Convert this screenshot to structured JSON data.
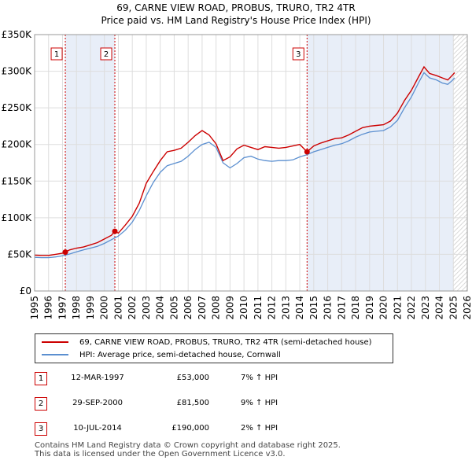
{
  "chart_data": {
    "type": "line",
    "title": "69, CARNE VIEW ROAD, PROBUS, TRURO, TR2 4TR",
    "subtitle": "Price paid vs. HM Land Registry's House Price Index (HPI)",
    "xlabel": "",
    "ylabel": "",
    "xlim": [
      1995,
      2026
    ],
    "ylim": [
      0,
      350000
    ],
    "x_ticks": [
      "1995",
      "1996",
      "1997",
      "1998",
      "1999",
      "2000",
      "2001",
      "2002",
      "2003",
      "2004",
      "2005",
      "2006",
      "2007",
      "2008",
      "2009",
      "2010",
      "2011",
      "2012",
      "2013",
      "2014",
      "2015",
      "2016",
      "2017",
      "2018",
      "2019",
      "2020",
      "2021",
      "2022",
      "2023",
      "2024",
      "2025",
      "2026"
    ],
    "y_ticks": [
      {
        "value": 0,
        "label": "£0"
      },
      {
        "value": 50000,
        "label": "£50K"
      },
      {
        "value": 100000,
        "label": "£100K"
      },
      {
        "value": 150000,
        "label": "£150K"
      },
      {
        "value": 200000,
        "label": "£200K"
      },
      {
        "value": 250000,
        "label": "£250K"
      },
      {
        "value": 300000,
        "label": "£300K"
      },
      {
        "value": 350000,
        "label": "£350K"
      }
    ],
    "grid": true,
    "series": [
      {
        "name": "69, CARNE VIEW ROAD, PROBUS, TRURO, TR2 4TR (semi-detached house)",
        "color": "#cc0000",
        "x": [
          1995.0,
          1995.5,
          1996.0,
          1996.5,
          1997.0,
          1997.2,
          1997.5,
          1998.0,
          1998.5,
          1999.0,
          1999.5,
          2000.0,
          2000.5,
          2000.75,
          2001.0,
          2001.5,
          2002.0,
          2002.5,
          2003.0,
          2003.5,
          2004.0,
          2004.5,
          2005.0,
          2005.5,
          2006.0,
          2006.5,
          2007.0,
          2007.5,
          2008.0,
          2008.5,
          2009.0,
          2009.5,
          2010.0,
          2010.5,
          2011.0,
          2011.5,
          2012.0,
          2012.5,
          2013.0,
          2013.5,
          2014.0,
          2014.52,
          2015.0,
          2015.5,
          2016.0,
          2016.5,
          2017.0,
          2017.5,
          2018.0,
          2018.5,
          2019.0,
          2019.5,
          2020.0,
          2020.5,
          2021.0,
          2021.5,
          2022.0,
          2022.5,
          2022.9,
          2023.3,
          2023.8,
          2024.2,
          2024.6,
          2024.9,
          2025.1
        ],
        "y": [
          49000,
          48500,
          48500,
          50000,
          51500,
          53000,
          56000,
          58500,
          60000,
          63000,
          66000,
          71000,
          76000,
          81500,
          79000,
          90000,
          102000,
          120000,
          147000,
          163000,
          178000,
          190000,
          192000,
          195000,
          203000,
          212000,
          219000,
          213000,
          201000,
          178000,
          183000,
          194000,
          199000,
          196000,
          193000,
          197000,
          196000,
          195000,
          196000,
          198000,
          200000,
          190000,
          198000,
          202000,
          205000,
          208000,
          209000,
          213000,
          218000,
          223000,
          225000,
          226000,
          227000,
          232000,
          243000,
          260000,
          274000,
          292000,
          306000,
          297000,
          294000,
          291000,
          288000,
          294000,
          298000
        ]
      },
      {
        "name": "HPI: Average price, semi-detached house, Cornwall",
        "color": "#5b8fd0",
        "x": [
          1995.0,
          1995.5,
          1996.0,
          1996.5,
          1997.0,
          1997.5,
          1998.0,
          1998.5,
          1999.0,
          1999.5,
          2000.0,
          2000.5,
          2001.0,
          2001.5,
          2002.0,
          2002.5,
          2003.0,
          2003.5,
          2004.0,
          2004.5,
          2005.0,
          2005.5,
          2006.0,
          2006.5,
          2007.0,
          2007.5,
          2008.0,
          2008.5,
          2009.0,
          2009.5,
          2010.0,
          2010.5,
          2011.0,
          2011.5,
          2012.0,
          2012.5,
          2013.0,
          2013.5,
          2014.0,
          2014.5,
          2015.0,
          2015.5,
          2016.0,
          2016.5,
          2017.0,
          2017.5,
          2018.0,
          2018.5,
          2019.0,
          2019.5,
          2020.0,
          2020.5,
          2021.0,
          2021.5,
          2022.0,
          2022.5,
          2022.9,
          2023.3,
          2023.8,
          2024.2,
          2024.6,
          2024.9,
          2025.1
        ],
        "y": [
          46000,
          45500,
          45500,
          46500,
          48000,
          50500,
          53500,
          56000,
          58500,
          61000,
          65000,
          70000,
          75000,
          83000,
          94000,
          110000,
          130000,
          148000,
          162000,
          171000,
          174000,
          177000,
          184000,
          193000,
          200000,
          203000,
          196000,
          175000,
          168000,
          174000,
          182000,
          184000,
          180000,
          178000,
          177000,
          178000,
          178000,
          179000,
          183000,
          186000,
          190000,
          193000,
          196000,
          199000,
          201000,
          205000,
          210000,
          214000,
          217000,
          218000,
          219000,
          224000,
          233000,
          250000,
          265000,
          284000,
          298000,
          291000,
          288000,
          284000,
          282000,
          287000,
          291000
        ]
      }
    ],
    "sales": [
      {
        "label": "1",
        "x": 1997.2,
        "y": 53000
      },
      {
        "label": "2",
        "x": 2000.75,
        "y": 81500
      },
      {
        "label": "3",
        "x": 2014.52,
        "y": 190000
      }
    ]
  },
  "legend": {
    "property_label": "69, CARNE VIEW ROAD, PROBUS, TRURO, TR2 4TR (semi-detached house)",
    "hpi_label": "HPI: Average price, semi-detached house, Cornwall"
  },
  "transactions": [
    {
      "num": "1",
      "date": "12-MAR-1997",
      "price": "£53,000",
      "delta": "7% ↑ HPI"
    },
    {
      "num": "2",
      "date": "29-SEP-2000",
      "price": "£81,500",
      "delta": "9% ↑ HPI"
    },
    {
      "num": "3",
      "date": "10-JUL-2014",
      "price": "£190,000",
      "delta": "2% ↑ HPI"
    }
  ],
  "footer": {
    "line1": "Contains HM Land Registry data © Crown copyright and database right 2025.",
    "line2": "This data is licensed under the Open Government Licence v3.0."
  },
  "colors": {
    "property": "#cc0000",
    "hpi": "#5b8fd0",
    "grid": "#dddddd",
    "shade": "#e8eef8",
    "future_hatch": "#cccccc"
  }
}
